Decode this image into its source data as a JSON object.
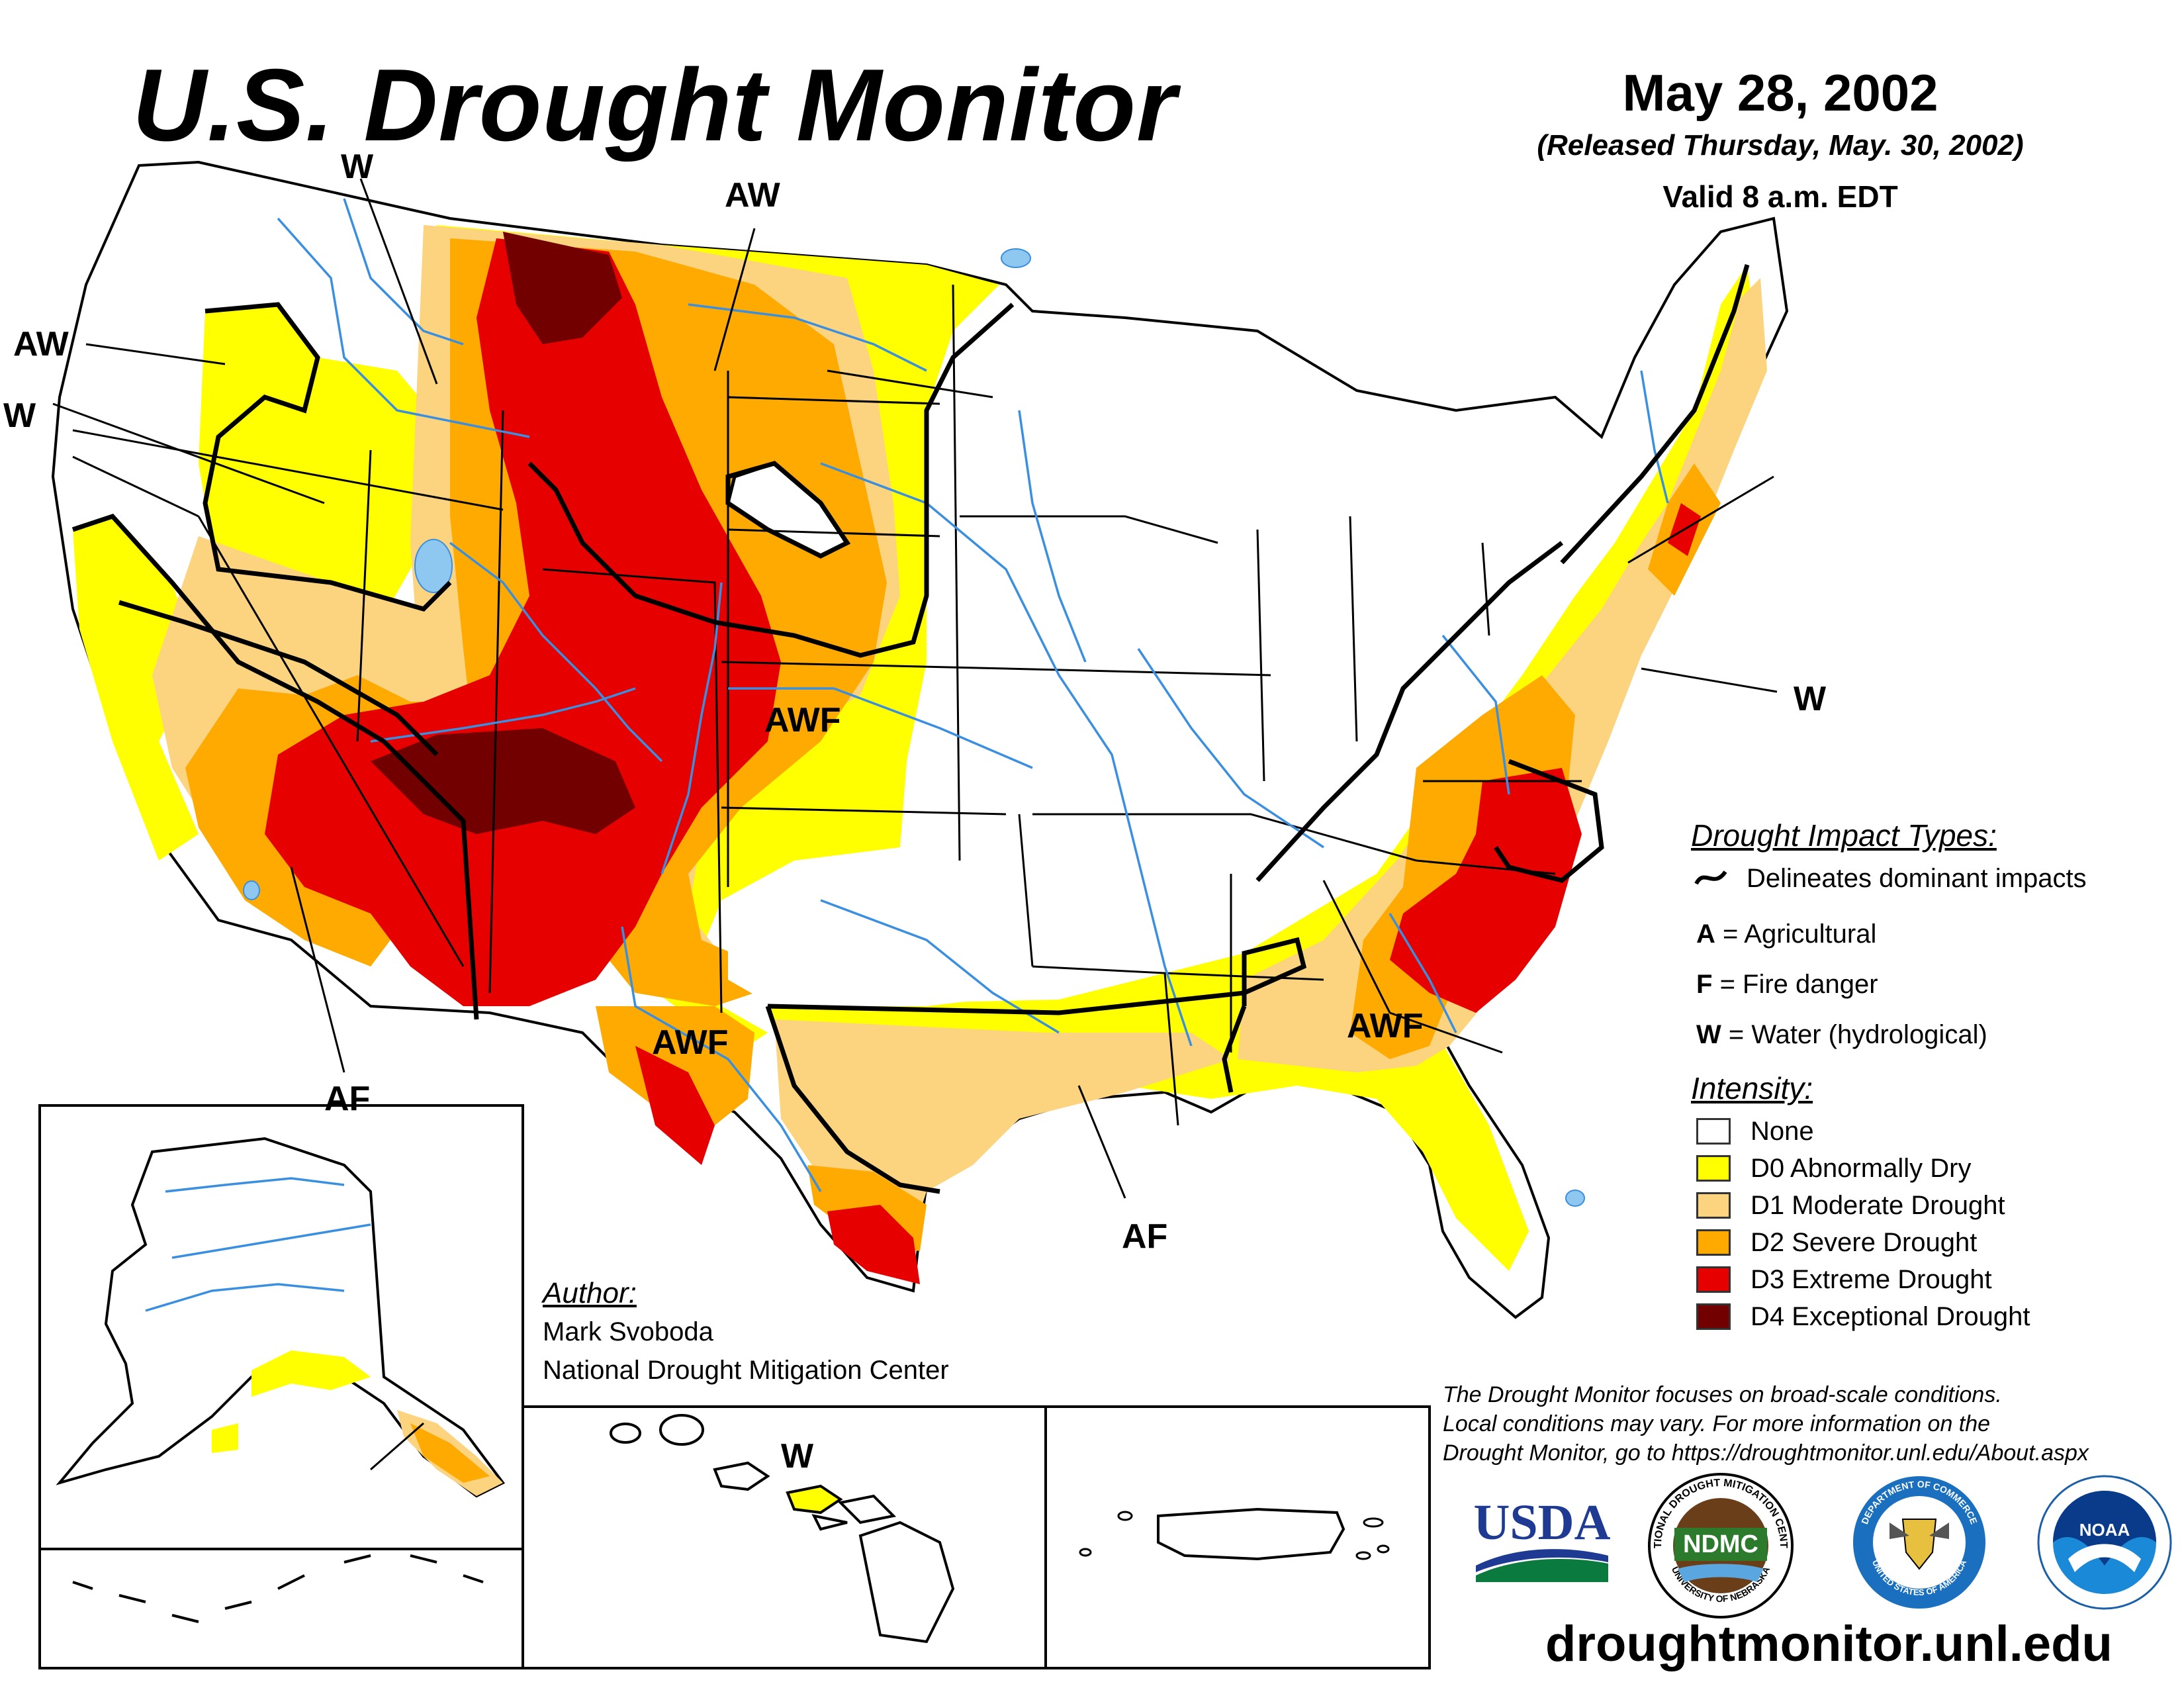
{
  "header": {
    "title": "U.S. Drought Monitor",
    "date": "May 28, 2002",
    "released": "(Released Thursday, May. 30, 2002)",
    "valid": "Valid 8 a.m. EDT"
  },
  "map_labels": {
    "w_nw": "W",
    "aw_north": "AW",
    "aw_west": "AW",
    "w_west": "W",
    "awf_colorado": "AWF",
    "w_east": "W",
    "awf_texas": "AWF",
    "af_arizona": "AF",
    "awf_southeast": "AWF",
    "af_louisiana": "AF",
    "w_hawaii": "W"
  },
  "legend": {
    "impact_title": "Drought Impact Types:",
    "delineates": "Delineates dominant impacts",
    "impacts": [
      {
        "code": "A",
        "text": "= Agricultural"
      },
      {
        "code": "F",
        "text": "= Fire danger"
      },
      {
        "code": "W",
        "text": "= Water (hydrological)"
      }
    ],
    "intensity_title": "Intensity:",
    "levels": [
      {
        "label": "None",
        "color": "#ffffff"
      },
      {
        "label": "D0 Abnormally Dry",
        "color": "#ffff00"
      },
      {
        "label": "D1 Moderate Drought",
        "color": "#fcd37f"
      },
      {
        "label": "D2 Severe Drought",
        "color": "#ffaa00"
      },
      {
        "label": "D3 Extreme Drought",
        "color": "#e60000"
      },
      {
        "label": "D4 Exceptional Drought",
        "color": "#730000"
      }
    ]
  },
  "author": {
    "heading": "Author:",
    "name": "Mark Svoboda",
    "org": "National Drought Mitigation Center"
  },
  "disclaimer": {
    "line1": "The Drought Monitor focuses on broad-scale conditions.",
    "line2": "Local conditions may vary. For more information on the",
    "line3": "Drought Monitor, go to https://droughtmonitor.unl.edu/About.aspx"
  },
  "logos": {
    "usda": "USDA",
    "ndmc": "NDMC",
    "ndmc_ring": "NATIONAL DROUGHT MITIGATION CENTER",
    "ndmc_ring_bottom": "UNIVERSITY OF NEBRASKA",
    "doc_ring": "DEPARTMENT OF COMMERCE",
    "doc_ring_bottom": "UNITED STATES OF AMERICA",
    "noaa": "NOAA"
  },
  "website": "droughtmonitor.unl.edu",
  "colors": {
    "d0": "#ffff00",
    "d1": "#fcd37f",
    "d2": "#ffaa00",
    "d3": "#e60000",
    "d4": "#730000",
    "water": "#8ec8f0"
  }
}
